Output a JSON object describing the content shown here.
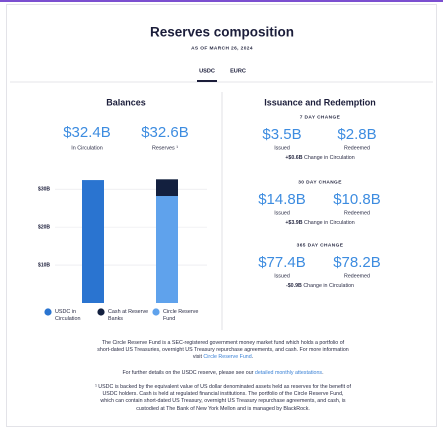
{
  "header": {
    "title": "Reserves composition",
    "date": "AS OF MARCH 26, 2024",
    "tabs": [
      {
        "label": "USDC",
        "active": true
      },
      {
        "label": "EURC",
        "active": false
      }
    ]
  },
  "balances": {
    "title": "Balances",
    "stats": [
      {
        "value": "$32.4B",
        "label": "In Circulation"
      },
      {
        "value": "$32.6B",
        "label": "Reserves ¹"
      }
    ]
  },
  "chart_data": {
    "type": "bar",
    "stacked": true,
    "categories": [
      null,
      null
    ],
    "series": [
      {
        "name": "USDC in Circulation",
        "color": "#2a74d0",
        "values": [
          32.4,
          null
        ]
      },
      {
        "name": "Cash at Reserve Banks",
        "color": "#13203f",
        "values": [
          null,
          4.4
        ]
      },
      {
        "name": "Circle Reserve Fund",
        "color": "#5fa2ec",
        "values": [
          null,
          28.2
        ]
      }
    ],
    "ylim": [
      0,
      34
    ],
    "yticks": [
      {
        "value": 10,
        "label": "$10B"
      },
      {
        "value": 20,
        "label": "$20B"
      },
      {
        "value": 30,
        "label": "$30B"
      }
    ],
    "grid": true
  },
  "issuance": {
    "title": "Issuance and Redemption",
    "periods": [
      {
        "label": "7 DAY CHANGE",
        "issued": "$3.5B",
        "issued_label": "Issued",
        "redeemed": "$2.8B",
        "redeemed_label": "Redeemed",
        "change": "+$0.6B",
        "change_label": "Change in Circulation"
      },
      {
        "label": "30 DAY CHANGE",
        "issued": "$14.8B",
        "issued_label": "Issued",
        "redeemed": "$10.8B",
        "redeemed_label": "Redeemed",
        "change": "+$3.9B",
        "change_label": "Change in Circulation"
      },
      {
        "label": "365 DAY CHANGE",
        "issued": "$77.4B",
        "issued_label": "Issued",
        "redeemed": "$78.2B",
        "redeemed_label": "Redeemed",
        "change": "-$0.9B",
        "change_label": "Change in Circulation"
      }
    ]
  },
  "footer": {
    "paragraphs": [
      [
        {
          "text": "The Circle Reserve Fund is a SEC-registered government money market fund which holds a portfolio of short-dated US Treasuries, overnight US Treasury repurchase agreements, and cash. For more information visit ",
          "link": false
        },
        {
          "text": "Circle Reserve Fund",
          "link": true
        },
        {
          "text": ".",
          "link": false
        }
      ],
      [
        {
          "text": "For further details on the USDC reserve, please see our ",
          "link": false
        },
        {
          "text": "detailed monthly attestations",
          "link": true
        },
        {
          "text": ".",
          "link": false
        }
      ],
      [
        {
          "text": "¹ USDC is backed by the equivalent value of US dollar denominated assets held as reserves for the benefit of USDC holders. Cash is held at regulated financial institutions. The portfolio of the Circle Reserve Fund, which can contain short-dated US Treasury, overnight US Treasury repurchase agreements, and cash, is custodied at The Bank of New York Mellon and is managed by BlackRock.",
          "link": false
        }
      ]
    ]
  }
}
